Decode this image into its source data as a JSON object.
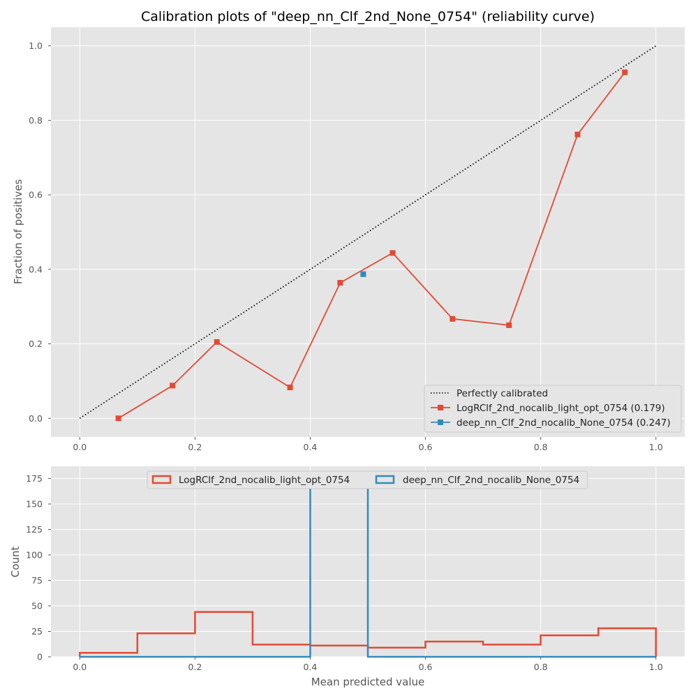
{
  "chart_data": [
    {
      "type": "line",
      "title": "Calibration plots of \"deep_nn_Clf_2nd_None_0754\" (reliability curve)",
      "xlabel": "",
      "ylabel": "Fraction of positives",
      "xlim": [
        -0.05,
        1.05
      ],
      "ylim": [
        -0.05,
        1.05
      ],
      "xticks": [
        0.0,
        0.2,
        0.4,
        0.6,
        0.8,
        1.0
      ],
      "xtick_labels": [
        "0.0",
        "0.2",
        "0.4",
        "0.6",
        "0.8",
        "1.0"
      ],
      "yticks": [
        0.0,
        0.2,
        0.4,
        0.6,
        0.8,
        1.0
      ],
      "ytick_labels": [
        "0.0",
        "0.2",
        "0.4",
        "0.6",
        "0.8",
        "1.0"
      ],
      "grid": true,
      "legend_position": "lower-right",
      "series": [
        {
          "name": "Perfectly calibrated",
          "style": "dotted",
          "color": "#000000",
          "x": [
            0.0,
            1.0
          ],
          "y": [
            0.0,
            1.0
          ]
        },
        {
          "name": "LogRClf_2nd_nocalib_light_opt_0754 (0.179)",
          "style": "line-square",
          "color": "#E24A33",
          "x": [
            0.067,
            0.161,
            0.238,
            0.365,
            0.452,
            0.543,
            0.647,
            0.745,
            0.864,
            0.946
          ],
          "y": [
            0.0,
            0.088,
            0.205,
            0.083,
            0.364,
            0.444,
            0.267,
            0.25,
            0.762,
            0.929
          ]
        },
        {
          "name": "deep_nn_Clf_2nd_nocalib_None_0754 (0.247)",
          "style": "line-square",
          "color": "#348ABD",
          "x": [
            0.492
          ],
          "y": [
            0.387
          ]
        }
      ]
    },
    {
      "type": "histogram",
      "title": "",
      "xlabel": "Mean predicted value",
      "ylabel": "Count",
      "xlim": [
        -0.05,
        1.05
      ],
      "ylim": [
        0,
        187
      ],
      "xticks": [
        0.0,
        0.2,
        0.4,
        0.6,
        0.8,
        1.0
      ],
      "xtick_labels": [
        "0.0",
        "0.2",
        "0.4",
        "0.6",
        "0.8",
        "1.0"
      ],
      "yticks": [
        0,
        25,
        50,
        75,
        100,
        125,
        150,
        175
      ],
      "ytick_labels": [
        "0",
        "25",
        "50",
        "75",
        "100",
        "125",
        "150",
        "175"
      ],
      "grid": true,
      "legend_position": "upper-center",
      "bin_edges": [
        0.0,
        0.1,
        0.2,
        0.3,
        0.4,
        0.5,
        0.6,
        0.7,
        0.8,
        0.9,
        1.0
      ],
      "series": [
        {
          "name": "LogRClf_2nd_nocalib_light_opt_0754",
          "color": "#E24A33",
          "counts": [
            4,
            23,
            44,
            12,
            11,
            9,
            15,
            12,
            21,
            28
          ]
        },
        {
          "name": "deep_nn_Clf_2nd_nocalib_None_0754",
          "color": "#348ABD",
          "counts": [
            0,
            0,
            0,
            0,
            179,
            0,
            0,
            0,
            0,
            0
          ]
        }
      ]
    }
  ]
}
